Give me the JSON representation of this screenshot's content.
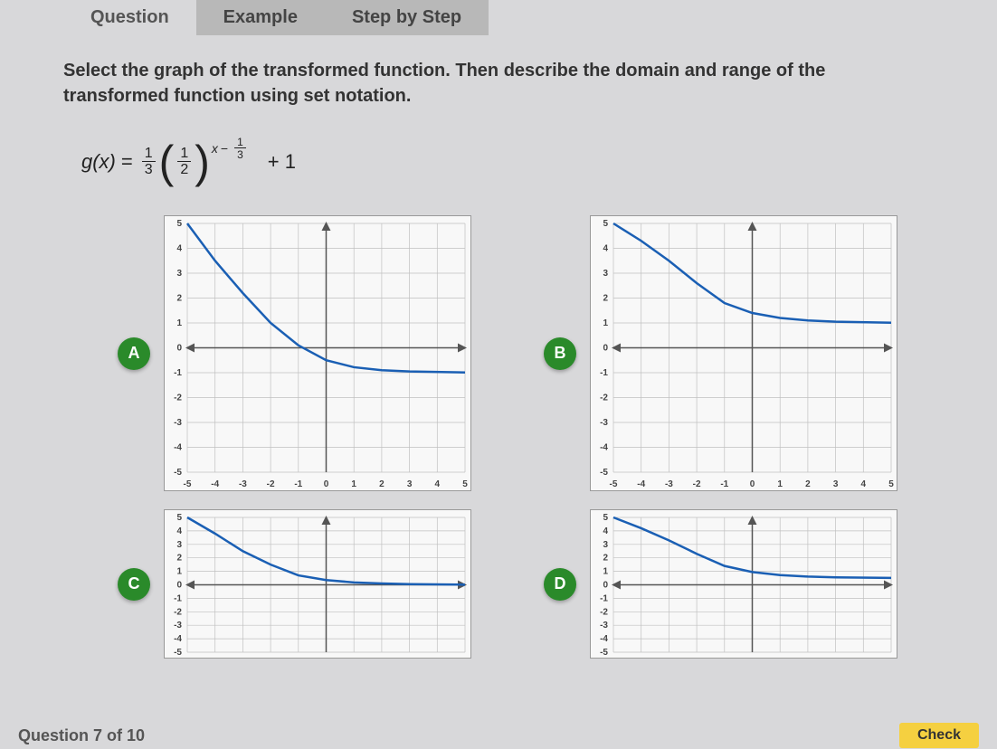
{
  "tabs": {
    "question": "Question",
    "example": "Example",
    "step": "Step by Step"
  },
  "question_text": "Select the graph of the transformed function. Then describe the domain and range of the transformed function using set notation.",
  "formula": {
    "gx": "g(x)",
    "equals": "=",
    "coef_num": "1",
    "coef_den": "3",
    "base_num": "1",
    "base_den": "2",
    "exp_x": "x",
    "exp_minus": "−",
    "exp_num": "1",
    "exp_den": "3",
    "plus": "+ 1"
  },
  "options": {
    "a": "A",
    "b": "B",
    "c": "C",
    "d": "D"
  },
  "graph": {
    "xmin": -5,
    "xmax": 5,
    "ymin": -5,
    "ymax": 5,
    "grid_color": "#c0c0c0",
    "axis_color": "#555",
    "curve_color": "#1a5fb4",
    "bg_color": "#f8f8f8",
    "tick_labels_x": [
      "-5",
      "-4",
      "-3",
      "-2",
      "-1",
      "0",
      "1",
      "2",
      "3",
      "4",
      "5"
    ],
    "tick_labels_y": [
      "5",
      "4",
      "3",
      "2",
      "1",
      "0",
      "-1",
      "-2",
      "-3",
      "-4",
      "-5"
    ]
  },
  "curves": {
    "a": {
      "asymptote": -1,
      "points": [
        [
          -5,
          5
        ],
        [
          -4,
          3.5
        ],
        [
          -3,
          2.2
        ],
        [
          -2,
          1
        ],
        [
          -1,
          0.1
        ],
        [
          0,
          -0.5
        ],
        [
          1,
          -0.78
        ],
        [
          2,
          -0.9
        ],
        [
          3,
          -0.95
        ],
        [
          5,
          -0.99
        ]
      ]
    },
    "b": {
      "asymptote": 1,
      "points": [
        [
          -5,
          5
        ],
        [
          -4,
          4.3
        ],
        [
          -3,
          3.5
        ],
        [
          -2,
          2.6
        ],
        [
          -1,
          1.8
        ],
        [
          0,
          1.4
        ],
        [
          1,
          1.2
        ],
        [
          2,
          1.1
        ],
        [
          3,
          1.05
        ],
        [
          5,
          1.01
        ]
      ]
    },
    "c": {
      "asymptote": 0,
      "points": [
        [
          -5,
          5
        ],
        [
          -4,
          3.8
        ],
        [
          -3,
          2.5
        ],
        [
          -2,
          1.5
        ],
        [
          -1,
          0.7
        ],
        [
          0,
          0.35
        ],
        [
          1,
          0.18
        ],
        [
          2,
          0.1
        ],
        [
          3,
          0.05
        ],
        [
          5,
          0.01
        ]
      ]
    },
    "d": {
      "asymptote": 0.5,
      "points": [
        [
          -5,
          5
        ],
        [
          -4,
          4.2
        ],
        [
          -3,
          3.3
        ],
        [
          -2,
          2.3
        ],
        [
          -1,
          1.4
        ],
        [
          0,
          0.95
        ],
        [
          1,
          0.72
        ],
        [
          2,
          0.61
        ],
        [
          3,
          0.55
        ],
        [
          5,
          0.51
        ]
      ]
    }
  },
  "footer": {
    "page": "Question 7 of 10",
    "check": "Check"
  },
  "colors": {
    "option_btn": "#2a8a2a",
    "tab_inactive": "#b8b8b8",
    "yellow": "#f5d040"
  }
}
